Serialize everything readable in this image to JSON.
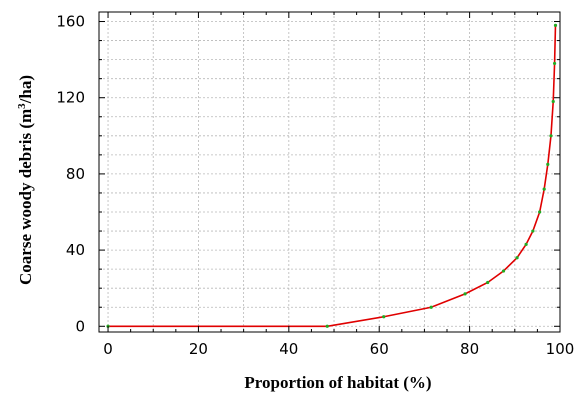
{
  "chart_data": {
    "type": "line",
    "title": "",
    "xlabel": "Proportion  of habitat  (%)",
    "ylabel_main": "Coarse woody debris (m",
    "ylabel_sup": "3",
    "ylabel_end": "/ha)",
    "xlim": [
      -2,
      100
    ],
    "ylim": [
      -3,
      165
    ],
    "xticks": [
      0,
      20,
      40,
      60,
      80,
      100
    ],
    "yticks": [
      0,
      40,
      80,
      120,
      160
    ],
    "grid": true,
    "line_color": "#e00000",
    "marker_color": "#22aa22",
    "series": [
      {
        "x": [
          0,
          48.5,
          61,
          71.5,
          79,
          84,
          87.5,
          90.5,
          92.5,
          94,
          95.5,
          96.5,
          97.3,
          98,
          98.5,
          98.8,
          99
        ],
        "y": [
          0,
          0,
          5,
          10,
          17,
          23,
          29,
          36,
          43,
          50,
          60,
          72,
          85,
          100,
          118,
          138,
          158
        ]
      }
    ]
  }
}
